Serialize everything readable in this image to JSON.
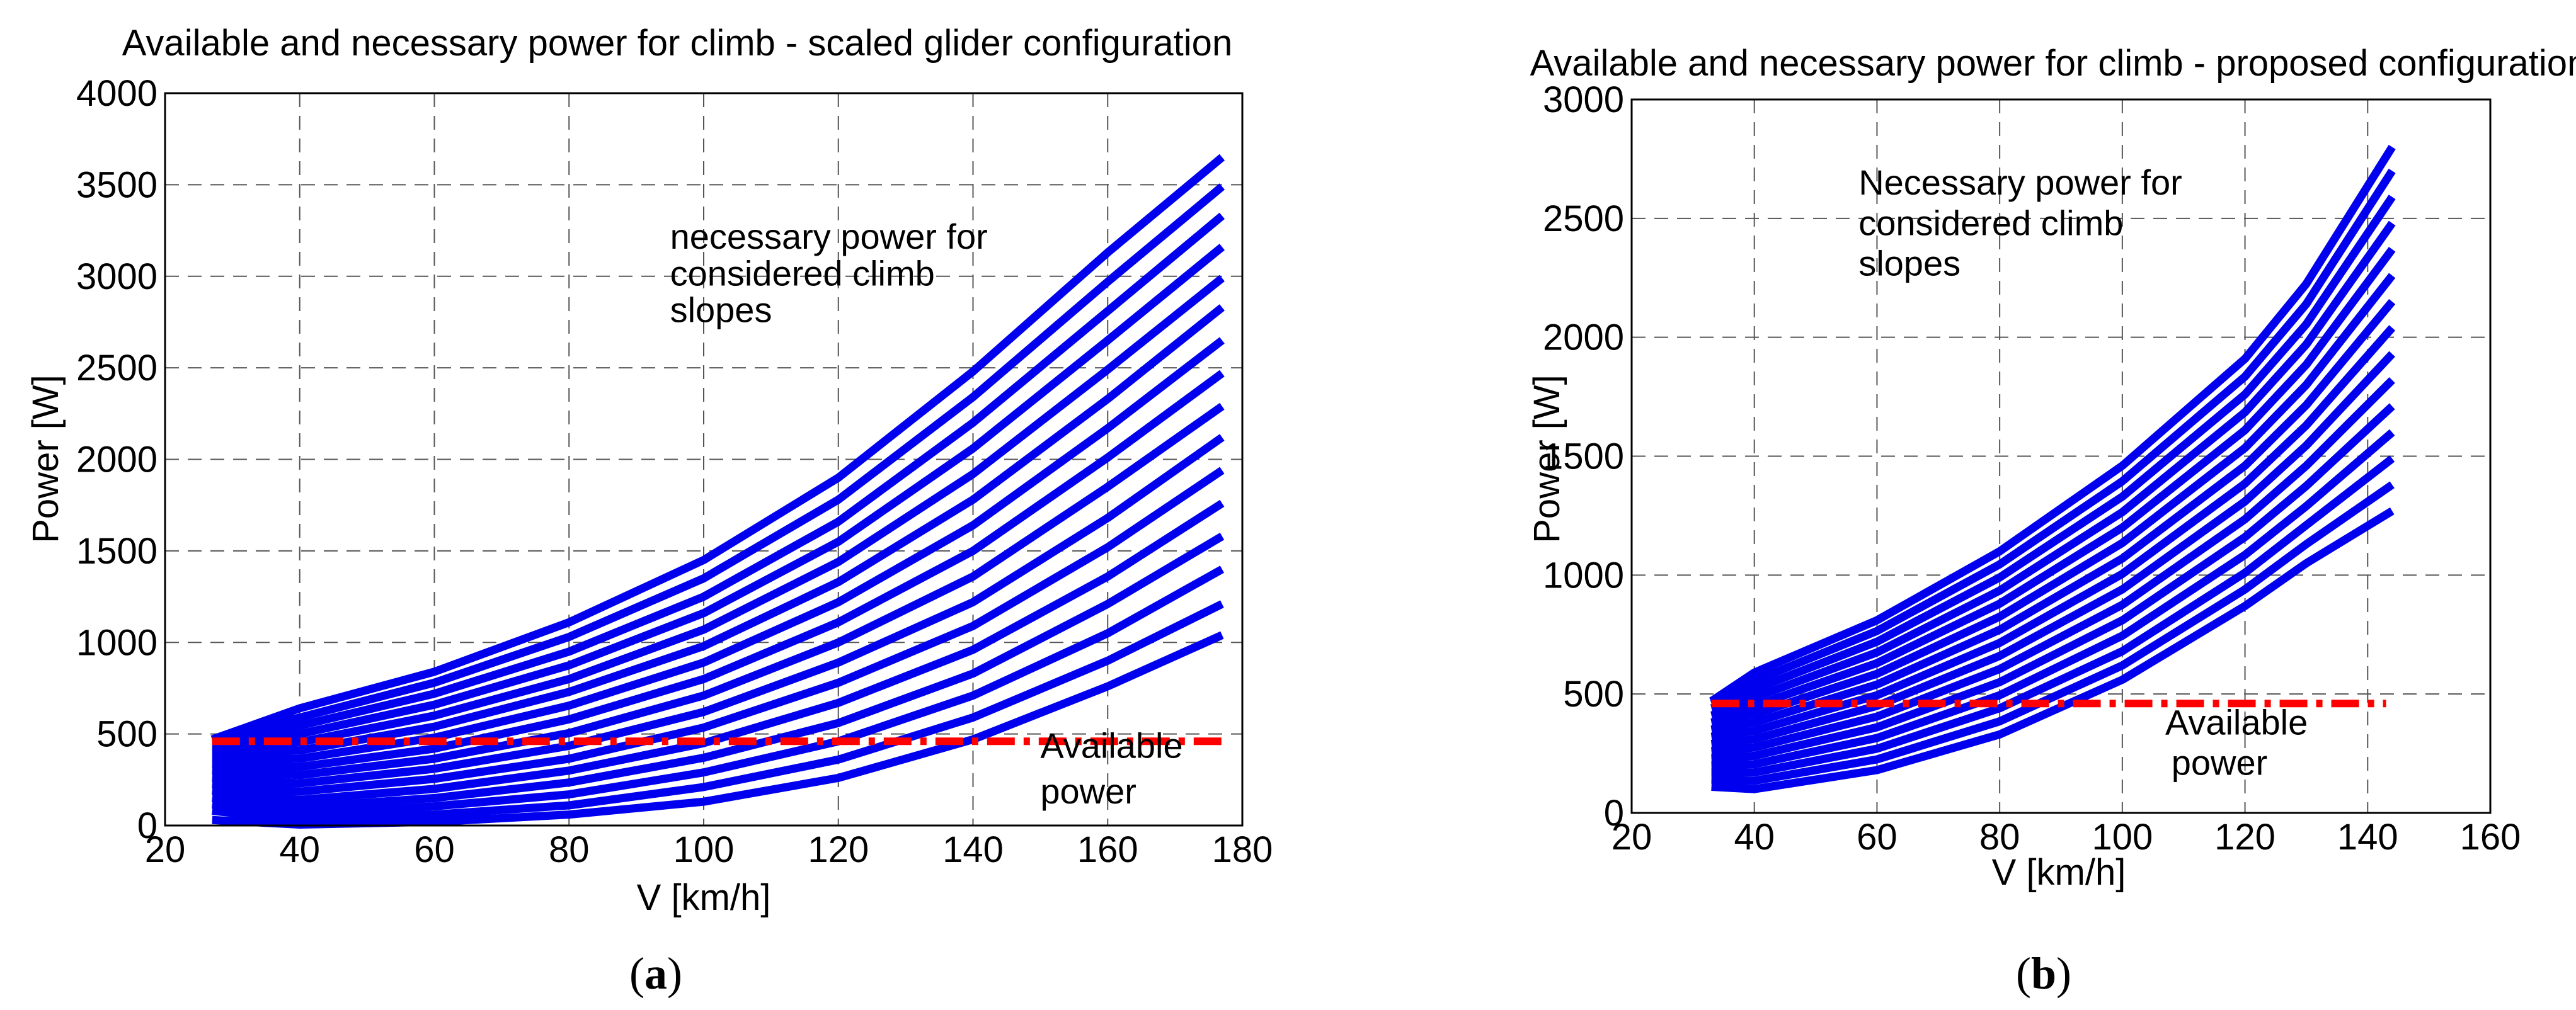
{
  "figure": {
    "panel_a_label": {
      "open": "(",
      "letter": "a",
      "close": ")"
    },
    "panel_b_label": {
      "open": "(",
      "letter": "b",
      "close": ")"
    }
  },
  "colors": {
    "necessary": "#0000ee",
    "available": "#ff0000",
    "grid": "#555555"
  },
  "chart_data": [
    {
      "type": "line",
      "title": "Available and necessary power for climb - scaled glider configuration",
      "xlabel": "V [km/h]",
      "ylabel": "Power [W]",
      "xlim": [
        20,
        180
      ],
      "ylim": [
        0,
        4000
      ],
      "xticks": [
        20,
        40,
        60,
        80,
        100,
        120,
        140,
        160,
        180
      ],
      "yticks": [
        0,
        500,
        1000,
        1500,
        2000,
        2500,
        3000,
        3500,
        4000
      ],
      "grid": true,
      "necessary_x": [
        27,
        40,
        60,
        80,
        100,
        120,
        140,
        160,
        177
      ],
      "necessary_series": [
        [
          30,
          5,
          20,
          60,
          130,
          260,
          470,
          760,
          1040
        ],
        [
          80,
          30,
          60,
          110,
          210,
          360,
          590,
          900,
          1210
        ],
        [
          115,
          60,
          105,
          170,
          290,
          460,
          710,
          1050,
          1400
        ],
        [
          150,
          100,
          150,
          235,
          370,
          560,
          830,
          1210,
          1580
        ],
        [
          190,
          140,
          200,
          300,
          450,
          670,
          960,
          1360,
          1760
        ],
        [
          225,
          185,
          255,
          365,
          535,
          780,
          1090,
          1520,
          1940
        ],
        [
          260,
          230,
          310,
          435,
          620,
          890,
          1220,
          1680,
          2120
        ],
        [
          300,
          275,
          365,
          505,
          710,
          1000,
          1360,
          1850,
          2290
        ],
        [
          335,
          320,
          420,
          580,
          800,
          1110,
          1500,
          2010,
          2470
        ],
        [
          370,
          365,
          480,
          655,
          890,
          1220,
          1640,
          2170,
          2650
        ],
        [
          405,
          410,
          540,
          730,
          980,
          1330,
          1780,
          2330,
          2830
        ],
        [
          435,
          455,
          600,
          800,
          1070,
          1440,
          1920,
          2490,
          2990
        ],
        [
          455,
          500,
          660,
          875,
          1160,
          1550,
          2060,
          2650,
          3160
        ],
        [
          465,
          545,
          720,
          950,
          1250,
          1660,
          2200,
          2810,
          3330
        ],
        [
          470,
          590,
          780,
          1030,
          1350,
          1780,
          2340,
          2970,
          3490
        ],
        [
          470,
          640,
          840,
          1110,
          1450,
          1900,
          2480,
          3130,
          3650
        ]
      ],
      "available": {
        "x": [
          27,
          177
        ],
        "y": [
          460,
          460
        ]
      },
      "annotations": [
        {
          "text": "necessary power for",
          "at": [
            95,
            3150
          ]
        },
        {
          "text": "considered climb",
          "at": [
            95,
            2950
          ]
        },
        {
          "text": "slopes",
          "at": [
            95,
            2750
          ]
        },
        {
          "text": "Available",
          "at": [
            150,
            370
          ]
        },
        {
          "text": "power",
          "at": [
            150,
            120
          ]
        }
      ]
    },
    {
      "type": "line",
      "title": "Available and necessary power for climb - proposed configuration",
      "xlabel": "V [km/h]",
      "ylabel": "Power [W]",
      "xlim": [
        20,
        160
      ],
      "ylim": [
        0,
        3000
      ],
      "xticks": [
        20,
        40,
        60,
        80,
        100,
        120,
        140,
        160
      ],
      "yticks": [
        0,
        500,
        1000,
        1500,
        2000,
        2500,
        3000
      ],
      "grid": true,
      "necessary_x": [
        33,
        40,
        60,
        80,
        100,
        120,
        130,
        144
      ],
      "necessary_series": [
        [
          110,
          100,
          180,
          330,
          560,
          870,
          1050,
          1270
        ],
        [
          140,
          135,
          225,
          385,
          620,
          940,
          1130,
          1380
        ],
        [
          170,
          170,
          270,
          440,
          680,
          1010,
          1210,
          1490
        ],
        [
          200,
          205,
          315,
          495,
          745,
          1085,
          1290,
          1600
        ],
        [
          230,
          240,
          360,
          550,
          810,
          1160,
          1375,
          1710
        ],
        [
          260,
          275,
          405,
          605,
          875,
          1235,
          1460,
          1820
        ],
        [
          290,
          310,
          450,
          660,
          940,
          1310,
          1545,
          1930
        ],
        [
          320,
          345,
          495,
          715,
          1005,
          1385,
          1630,
          2040
        ],
        [
          350,
          380,
          540,
          770,
          1070,
          1460,
          1715,
          2150
        ],
        [
          380,
          415,
          585,
          825,
          1135,
          1535,
          1800,
          2260
        ],
        [
          410,
          450,
          630,
          880,
          1200,
          1610,
          1885,
          2370
        ],
        [
          440,
          485,
          675,
          935,
          1265,
          1685,
          1970,
          2480
        ],
        [
          460,
          520,
          720,
          990,
          1330,
          1760,
          2055,
          2590
        ],
        [
          470,
          555,
          765,
          1045,
          1395,
          1835,
          2140,
          2700
        ],
        [
          470,
          590,
          810,
          1100,
          1460,
          1910,
          2225,
          2800
        ]
      ],
      "available": {
        "x": [
          33,
          143
        ],
        "y": [
          460,
          460
        ]
      },
      "annotations": [
        {
          "text": "Necessary power for",
          "at": [
            57,
            2600
          ]
        },
        {
          "text": "considered climb",
          "at": [
            57,
            2430
          ]
        },
        {
          "text": "slopes",
          "at": [
            57,
            2260
          ]
        },
        {
          "text": "Available",
          "at": [
            107,
            330
          ]
        },
        {
          "text": "power",
          "at": [
            108,
            160
          ]
        }
      ]
    }
  ]
}
